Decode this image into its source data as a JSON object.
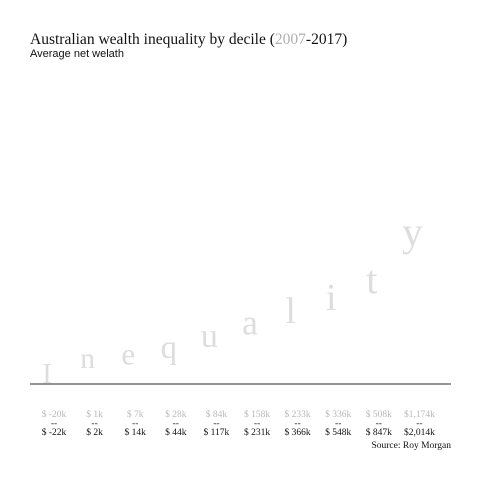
{
  "header": {
    "title_prefix": "Australian wealth inequality by decile (",
    "title_year_start": "2007",
    "title_suffix": "-2017)",
    "subtitle": "Average net welath"
  },
  "source": "Source: Roy Morgan",
  "colors": {
    "letters": "#dddddd",
    "baseline": "#555555",
    "label_2007": "#b8b8b8",
    "label_2017": "#111111"
  },
  "chart_data": {
    "type": "bar",
    "title": "Australian wealth inequality by decile (2007-2017)",
    "subtitle": "Average net welath",
    "decorative_word": [
      "I",
      "n",
      "e",
      "q",
      "u",
      "a",
      "l",
      "i",
      "t",
      "y"
    ],
    "categories_labels_2007": [
      "$ -20k",
      "$ 1k",
      "$ 7k",
      "$ 28k",
      "$ 84k",
      "$ 158k",
      "$ 233k",
      "$ 336k",
      "$ 508k",
      "$1,174k"
    ],
    "categories_labels_2017": [
      "$ -22k",
      "$ 2k",
      "$ 14k",
      "$ 44k",
      "$ 117k",
      "$ 231k",
      "$ 366k",
      "$ 548k",
      "$ 847k",
      "$2,014k"
    ],
    "separator": "--",
    "series": [
      {
        "name": "2007",
        "values": [
          -20,
          1,
          7,
          28,
          84,
          158,
          233,
          336,
          508,
          1174
        ]
      },
      {
        "name": "2017",
        "values": [
          -22,
          2,
          14,
          44,
          117,
          231,
          366,
          548,
          847,
          2014
        ]
      }
    ]
  }
}
